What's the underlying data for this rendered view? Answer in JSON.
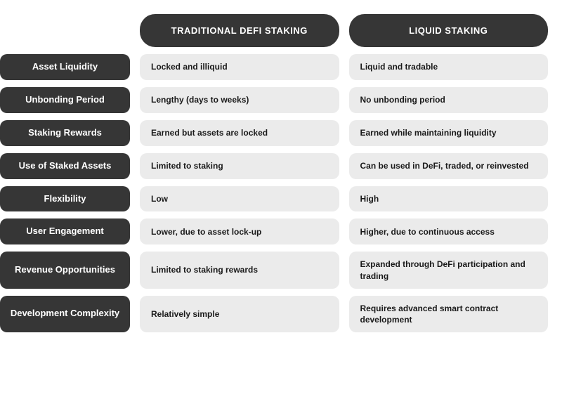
{
  "table": {
    "type": "table",
    "background_color": "#ffffff",
    "colors": {
      "header_bg": "#363636",
      "header_text": "#ffffff",
      "cell_bg": "#ebebeb",
      "cell_text": "#1a1a1a"
    },
    "columns": [
      "TRADITIONAL DEFI STAKING",
      "LIQUID STAKING"
    ],
    "rows": [
      {
        "label": "Asset Liquidity",
        "values": [
          "Locked and illiquid",
          "Liquid and tradable"
        ]
      },
      {
        "label": "Unbonding Period",
        "values": [
          "Lengthy (days to weeks)",
          "No unbonding period"
        ]
      },
      {
        "label": "Staking Rewards",
        "values": [
          "Earned but assets are locked",
          "Earned while maintaining liquidity"
        ]
      },
      {
        "label": "Use of Staked Assets",
        "values": [
          "Limited to staking",
          "Can be used in DeFi, traded, or reinvested"
        ]
      },
      {
        "label": "Flexibility",
        "values": [
          "Low",
          "High"
        ]
      },
      {
        "label": "User Engagement",
        "values": [
          "Lower, due to asset lock-up",
          "Higher, due to continuous access"
        ]
      },
      {
        "label": "Revenue Opportunities",
        "values": [
          "Limited to staking rewards",
          "Expanded through DeFi participation and trading"
        ]
      },
      {
        "label": "Development Complexity",
        "values": [
          "Relatively simple",
          "Requires advanced smart contract development"
        ]
      }
    ]
  }
}
